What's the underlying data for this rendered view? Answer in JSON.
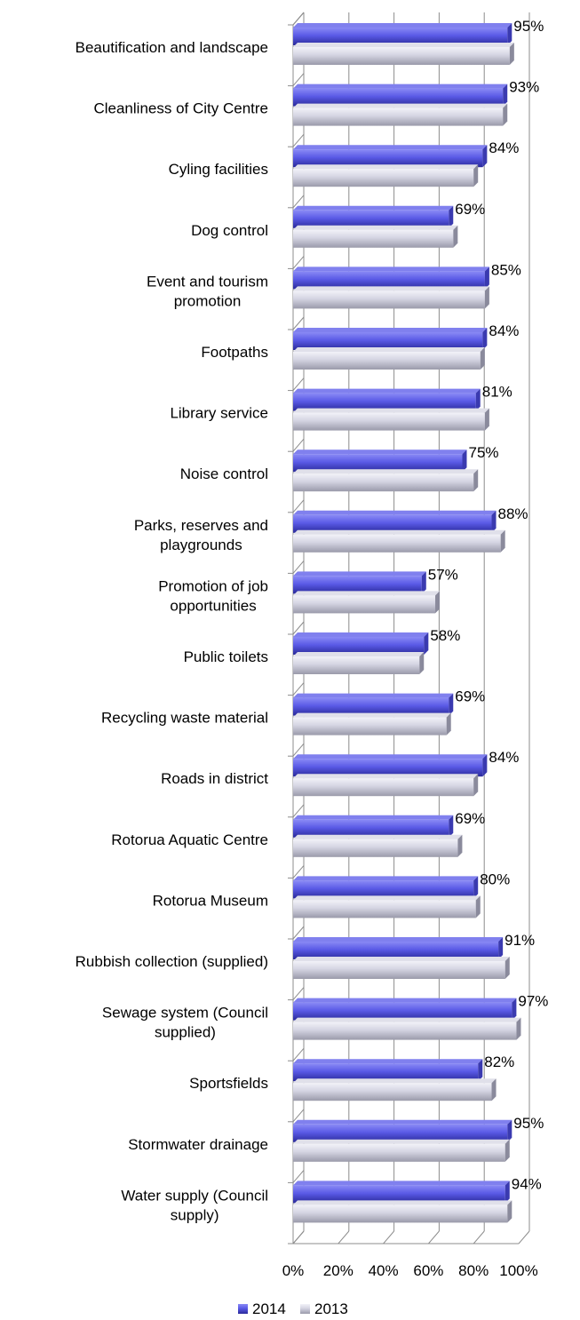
{
  "chart_data": {
    "type": "bar",
    "orientation": "horizontal",
    "categories": [
      [
        "Beautification and landscape"
      ],
      [
        "Cleanliness of City Centre"
      ],
      [
        "Cyling facilities"
      ],
      [
        "Dog control"
      ],
      [
        "Event and tourism",
        "promotion"
      ],
      [
        "Footpaths"
      ],
      [
        "Library service"
      ],
      [
        "Noise control"
      ],
      [
        "Parks, reserves and",
        "playgrounds"
      ],
      [
        "Promotion of job",
        "opportunities"
      ],
      [
        "Public toilets"
      ],
      [
        "Recycling waste material"
      ],
      [
        "Roads in district"
      ],
      [
        "Rotorua Aquatic Centre"
      ],
      [
        "Rotorua Museum"
      ],
      [
        "Rubbish collection (supplied)"
      ],
      [
        "Sewage system (Council",
        "supplied)"
      ],
      [
        "Sportsfields"
      ],
      [
        "Stormwater drainage"
      ],
      [
        "Water supply (Council",
        "supply)"
      ]
    ],
    "series": [
      {
        "name": "2014",
        "color": "#5a5ae6",
        "values": [
          95,
          93,
          84,
          69,
          85,
          84,
          81,
          75,
          88,
          57,
          58,
          69,
          84,
          69,
          80,
          91,
          97,
          82,
          95,
          94
        ],
        "labels": [
          "95%",
          "93%",
          "84%",
          "69%",
          "85%",
          "84%",
          "81%",
          "75%",
          "88%",
          "57%",
          "58%",
          "69%",
          "84%",
          "69%",
          "80%",
          "91%",
          "97%",
          "82%",
          "95%",
          "94%"
        ]
      },
      {
        "name": "2013",
        "color": "#c8c8d8",
        "values": [
          96,
          93,
          80,
          71,
          85,
          83,
          85,
          80,
          92,
          63,
          56,
          68,
          80,
          73,
          81,
          94,
          99,
          88,
          94,
          95
        ]
      }
    ],
    "x_ticks": [
      "0%",
      "20%",
      "40%",
      "60%",
      "80%",
      "100%"
    ],
    "xlim": [
      0,
      100
    ],
    "grid": true,
    "legend_position": "bottom"
  }
}
